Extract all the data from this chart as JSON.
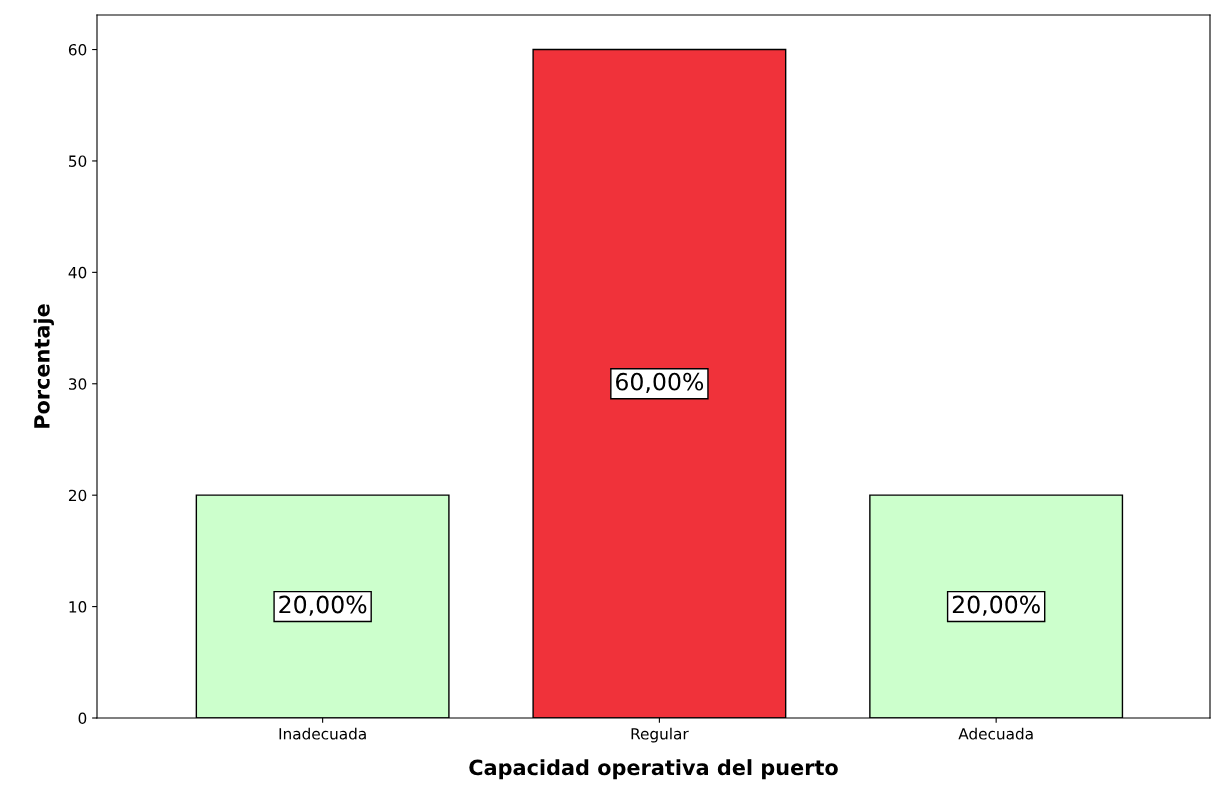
{
  "chart_data": {
    "type": "bar",
    "xlabel": "Capacidad operativa del puerto",
    "ylabel": "Porcentaje",
    "categories": [
      "Inadecuada",
      "Regular",
      "Adecuada"
    ],
    "values": [
      20,
      60,
      20
    ],
    "colors": [
      "#ccffcc",
      "#f0323a",
      "#ccffcc"
    ],
    "value_labels": [
      "20,00%",
      "60,00%",
      "20,00%"
    ],
    "ylim": [
      0,
      63.1
    ],
    "yticks": [
      0,
      10,
      20,
      30,
      40,
      50,
      60
    ],
    "grid": false
  }
}
